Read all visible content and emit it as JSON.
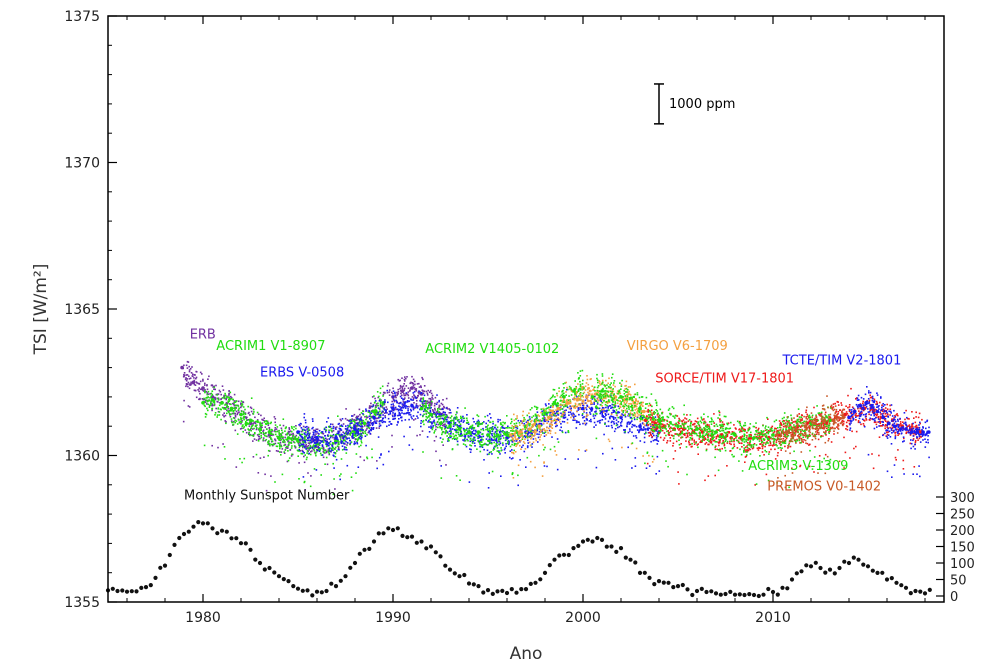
{
  "chart_data": {
    "type": "scatter",
    "title": "",
    "xlabel": "Ano",
    "ylabel": "TSI [W/m²]",
    "xlim": [
      1975,
      2019
    ],
    "ylim": [
      1355,
      1375
    ],
    "x_ticks": [
      1980,
      1990,
      2000,
      2010
    ],
    "y_ticks": [
      1355,
      1360,
      1365,
      1370,
      1375
    ],
    "right_axis": {
      "label": "",
      "ylim": [
        0,
        300
      ],
      "ticks": [
        0,
        50,
        100,
        150,
        200,
        250,
        300
      ]
    },
    "grid": false,
    "legend": "none",
    "scale_bar": {
      "label": "1000 ppm",
      "x": 2004,
      "y_center": 1372.0,
      "height_wm2": 1.361
    },
    "series": [
      {
        "name": "ERB",
        "color": "#7030a0",
        "label_pos": [
          1979.3,
          1364.0
        ],
        "x": [
          1978.9,
          1979.5,
          1980.0,
          1980.5,
          1981.0,
          1981.5,
          1982.0,
          1982.5,
          1983.0,
          1983.5,
          1984.0,
          1985.0,
          1986.0,
          1987.0,
          1988.0,
          1989.0,
          1990.0,
          1990.5,
          1991.0,
          1991.5,
          1992.0,
          1992.5,
          1993.0
        ],
        "y": [
          1363.0,
          1362.5,
          1362.3,
          1362.0,
          1361.8,
          1361.6,
          1361.4,
          1361.1,
          1360.9,
          1360.7,
          1360.6,
          1360.5,
          1360.5,
          1360.6,
          1361.0,
          1361.5,
          1362.0,
          1362.2,
          1362.3,
          1362.1,
          1361.8,
          1361.4,
          1361.1
        ]
      },
      {
        "name": "ACRIM1 V1-8907",
        "color": "#22dd11",
        "label_pos": [
          1980.7,
          1363.6
        ],
        "x": [
          1980.0,
          1980.5,
          1981.0,
          1981.5,
          1982.0,
          1982.5,
          1983.0,
          1983.5,
          1984.0,
          1984.5,
          1985.0,
          1986.0,
          1987.0,
          1988.0,
          1988.5,
          1989.0,
          1989.5
        ],
        "y": [
          1361.8,
          1361.9,
          1361.8,
          1361.6,
          1361.4,
          1361.2,
          1360.9,
          1360.8,
          1360.6,
          1360.6,
          1360.5,
          1360.4,
          1360.5,
          1360.8,
          1361.1,
          1361.5,
          1361.8
        ]
      },
      {
        "name": "ERBS V-0508",
        "color": "#1a1aee",
        "label_pos": [
          1983.0,
          1362.7
        ],
        "x": [
          1985.0,
          1986.0,
          1987.0,
          1988.0,
          1989.0,
          1990.0,
          1991.0,
          1992.0,
          1993.0,
          1994.0,
          1995.0,
          1996.0,
          1997.0,
          1998.0,
          1999.0,
          2000.0,
          2001.0,
          2002.0,
          2003.0,
          2004.0
        ],
        "y": [
          1360.8,
          1360.6,
          1360.6,
          1360.9,
          1361.3,
          1361.6,
          1361.7,
          1361.4,
          1361.1,
          1360.8,
          1360.7,
          1360.6,
          1360.8,
          1361.2,
          1361.4,
          1361.6,
          1361.5,
          1361.3,
          1361.0,
          1360.8
        ]
      },
      {
        "name": "ACRIM2 V1405-0102",
        "color": "#22dd11",
        "label_pos": [
          1991.7,
          1363.5
        ],
        "x": [
          1991.5,
          1992.0,
          1992.5,
          1993.0,
          1993.5,
          1994.0,
          1994.5,
          1995.0,
          1995.5,
          1996.0,
          1996.5,
          1997.0,
          1997.5,
          1998.0,
          1998.5,
          1999.0,
          1999.5,
          2000.0
        ],
        "y": [
          1361.6,
          1361.4,
          1361.1,
          1361.0,
          1360.9,
          1360.8,
          1360.8,
          1360.7,
          1360.7,
          1360.7,
          1360.8,
          1361.0,
          1361.2,
          1361.5,
          1361.8,
          1362.0,
          1362.2,
          1362.3
        ]
      },
      {
        "name": "VIRGO V6-1709",
        "color": "#f4a040",
        "label_pos": [
          2002.3,
          1363.6
        ],
        "x": [
          1996.2,
          1996.7,
          1997.2,
          1997.7,
          1998.2,
          1998.7,
          1999.2,
          1999.7,
          2000.2,
          2000.7,
          2001.2,
          2001.7,
          2002.2,
          2002.7,
          2003.2,
          2003.7
        ],
        "y": [
          1360.7,
          1360.8,
          1360.9,
          1361.0,
          1361.3,
          1361.6,
          1361.8,
          1361.9,
          1362.0,
          1362.1,
          1362.1,
          1362.0,
          1361.9,
          1361.8,
          1361.5,
          1361.2
        ]
      },
      {
        "name": "SORCE/TIM V17-1801",
        "color": "#ee1a1a",
        "label_pos": [
          2003.8,
          1362.5
        ],
        "x": [
          2003.3,
          2003.8,
          2004.3,
          2004.8,
          2005.3,
          2005.8,
          2006.3,
          2006.8,
          2007.3,
          2007.8,
          2008.3,
          2008.8,
          2009.3,
          2009.8,
          2010.3,
          2010.8,
          2011.3,
          2011.8,
          2012.3,
          2012.8,
          2013.3,
          2013.8,
          2014.3,
          2014.8,
          2015.3,
          2015.8,
          2016.3,
          2016.8,
          2017.3,
          2017.8
        ],
        "y": [
          1361.2,
          1361.1,
          1361.0,
          1360.9,
          1360.9,
          1360.8,
          1360.8,
          1360.7,
          1360.7,
          1360.6,
          1360.6,
          1360.6,
          1360.6,
          1360.6,
          1360.7,
          1360.8,
          1361.0,
          1361.1,
          1361.2,
          1361.1,
          1361.3,
          1361.4,
          1361.5,
          1361.6,
          1361.5,
          1361.3,
          1361.2,
          1361.0,
          1360.9,
          1360.8
        ]
      },
      {
        "name": "TCTE/TIM V2-1801",
        "color": "#1a1aee",
        "label_pos": [
          2010.5,
          1363.1
        ],
        "x": [
          2014.0,
          2014.3,
          2014.6,
          2014.9,
          2015.2,
          2015.5,
          2015.8,
          2016.1,
          2016.4,
          2016.7,
          2017.0,
          2017.3,
          2017.6,
          2017.9,
          2018.2
        ],
        "y": [
          1361.3,
          1361.5,
          1361.7,
          1361.8,
          1361.7,
          1361.5,
          1361.3,
          1361.1,
          1361.0,
          1360.9,
          1360.9,
          1360.8,
          1360.8,
          1360.8,
          1360.8
        ]
      },
      {
        "name": "ACRIM3 V-1309",
        "color": "#22dd11",
        "label_pos": [
          2008.7,
          1359.5
        ],
        "x": [
          2000.5,
          2001.0,
          2002.0,
          2003.0,
          2004.0,
          2005.0,
          2006.0,
          2007.0,
          2008.0,
          2009.0,
          2010.0,
          2011.0,
          2012.0,
          2013.0
        ],
        "y": [
          1362.0,
          1362.2,
          1362.0,
          1361.6,
          1361.2,
          1361.0,
          1360.9,
          1360.8,
          1360.7,
          1360.6,
          1360.7,
          1360.9,
          1361.1,
          1361.2
        ]
      },
      {
        "name": "PREMOS V0-1402",
        "color": "#c85a28",
        "label_pos": [
          2009.7,
          1358.8
        ],
        "x": [
          2010.2,
          2010.7,
          2011.2,
          2011.7,
          2012.2,
          2012.7,
          2013.2,
          2013.7
        ],
        "y": [
          1360.7,
          1360.8,
          1360.9,
          1361.0,
          1361.1,
          1361.2,
          1361.2,
          1361.3
        ]
      }
    ],
    "sunspots": {
      "name": "Monthly Sunspot Number",
      "label_pos": [
        1979.0,
        1358.5
      ],
      "color": "#111111",
      "x": [
        1975.0,
        1975.5,
        1976.0,
        1976.5,
        1977.0,
        1977.5,
        1978.0,
        1978.5,
        1979.0,
        1979.5,
        1980.0,
        1980.5,
        1981.0,
        1981.5,
        1982.0,
        1982.5,
        1983.0,
        1983.5,
        1984.0,
        1984.5,
        1985.0,
        1985.5,
        1986.0,
        1986.5,
        1987.0,
        1987.5,
        1988.0,
        1988.5,
        1989.0,
        1989.5,
        1990.0,
        1990.5,
        1991.0,
        1991.5,
        1992.0,
        1992.5,
        1993.0,
        1993.5,
        1994.0,
        1994.5,
        1995.0,
        1995.5,
        1996.0,
        1996.5,
        1997.0,
        1997.5,
        1998.0,
        1998.5,
        1999.0,
        1999.5,
        2000.0,
        2000.5,
        2001.0,
        2001.5,
        2002.0,
        2002.5,
        2003.0,
        2003.5,
        2004.0,
        2004.5,
        2005.0,
        2005.5,
        2006.0,
        2006.5,
        2007.0,
        2007.5,
        2008.0,
        2008.5,
        2009.0,
        2009.5,
        2010.0,
        2010.5,
        2011.0,
        2011.5,
        2012.0,
        2012.5,
        2013.0,
        2013.5,
        2014.0,
        2014.5,
        2015.0,
        2015.5,
        2016.0,
        2016.5,
        2017.0,
        2017.5,
        2018.0
      ],
      "y": [
        17,
        15,
        13,
        14,
        27,
        55,
        92,
        155,
        188,
        210,
        220,
        205,
        198,
        175,
        160,
        140,
        100,
        85,
        60,
        45,
        22,
        17,
        13,
        15,
        30,
        60,
        100,
        140,
        165,
        190,
        200,
        182,
        180,
        165,
        150,
        120,
        80,
        60,
        38,
        30,
        18,
        14,
        9,
        10,
        21,
        40,
        70,
        110,
        125,
        145,
        165,
        165,
        170,
        150,
        145,
        110,
        70,
        55,
        45,
        40,
        30,
        20,
        15,
        12,
        8,
        6,
        4,
        3,
        3,
        4,
        12,
        25,
        50,
        75,
        90,
        85,
        80,
        85,
        100,
        110,
        90,
        70,
        50,
        40,
        25,
        15,
        8
      ]
    }
  }
}
